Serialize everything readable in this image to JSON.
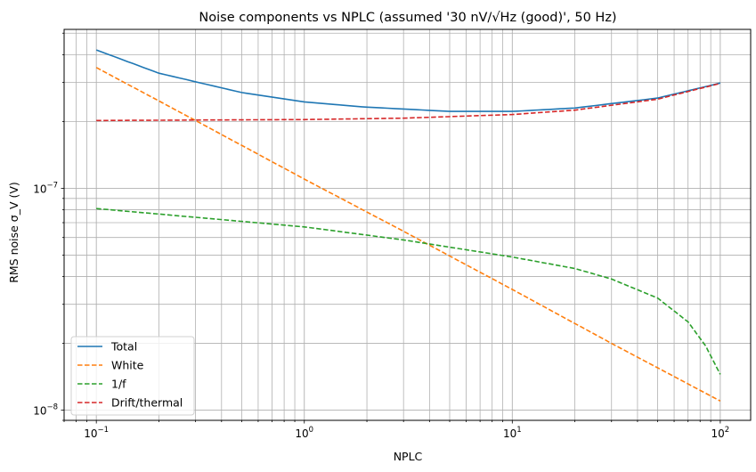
{
  "chart_data": {
    "type": "line",
    "title": "Noise components vs NPLC (assumed '30 nV/√Hz (good)', 50 Hz)",
    "xlabel": "NPLC",
    "ylabel": "RMS noise σ_V (V)",
    "xscale": "log",
    "yscale": "log",
    "xlim": [
      0.07,
      140
    ],
    "ylim": [
      9e-09,
      5.2e-07
    ],
    "grid": true,
    "grid_minor": true,
    "legend_position": "lower-left",
    "x_ticks": [
      {
        "value": 0.1,
        "base": "10",
        "exp": "−1"
      },
      {
        "value": 1,
        "base": "10",
        "exp": "0"
      },
      {
        "value": 10,
        "base": "10",
        "exp": "1"
      },
      {
        "value": 100,
        "base": "10",
        "exp": "2"
      }
    ],
    "y_ticks": [
      {
        "value": 1e-08,
        "base": "10",
        "exp": "−8"
      },
      {
        "value": 1e-07,
        "base": "10",
        "exp": "−7"
      }
    ],
    "series": [
      {
        "name": "Total",
        "color": "#1f77b4",
        "style": "solid",
        "x": [
          0.1,
          0.2,
          0.5,
          1,
          2,
          5,
          10,
          20,
          50,
          100
        ],
        "y": [
          4.2e-07,
          3.3e-07,
          2.7e-07,
          2.45e-07,
          2.32e-07,
          2.22e-07,
          2.22e-07,
          2.3e-07,
          2.55e-07,
          2.98e-07
        ]
      },
      {
        "name": "White",
        "color": "#ff7f0e",
        "style": "dashed",
        "x": [
          0.1,
          0.3,
          1,
          3,
          10,
          30,
          100
        ],
        "y": [
          3.5e-07,
          2.02e-07,
          1.1e-07,
          6.4e-08,
          3.5e-08,
          2e-08,
          1.1e-08
        ]
      },
      {
        "name": "1/f",
        "color": "#2ca02c",
        "style": "dashed",
        "x": [
          0.1,
          0.3,
          1,
          3,
          10,
          20,
          30,
          50,
          70,
          85,
          100
        ],
        "y": [
          8.1e-08,
          7.4e-08,
          6.7e-08,
          5.85e-08,
          4.9e-08,
          4.35e-08,
          3.9e-08,
          3.2e-08,
          2.5e-08,
          1.95e-08,
          1.45e-08
        ]
      },
      {
        "name": "Drift/thermal",
        "color": "#d62728",
        "style": "dashed",
        "x": [
          0.1,
          0.3,
          1,
          3,
          10,
          20,
          50,
          100
        ],
        "y": [
          2.02e-07,
          2.03e-07,
          2.04e-07,
          2.07e-07,
          2.15e-07,
          2.25e-07,
          2.52e-07,
          2.97e-07
        ]
      }
    ]
  }
}
